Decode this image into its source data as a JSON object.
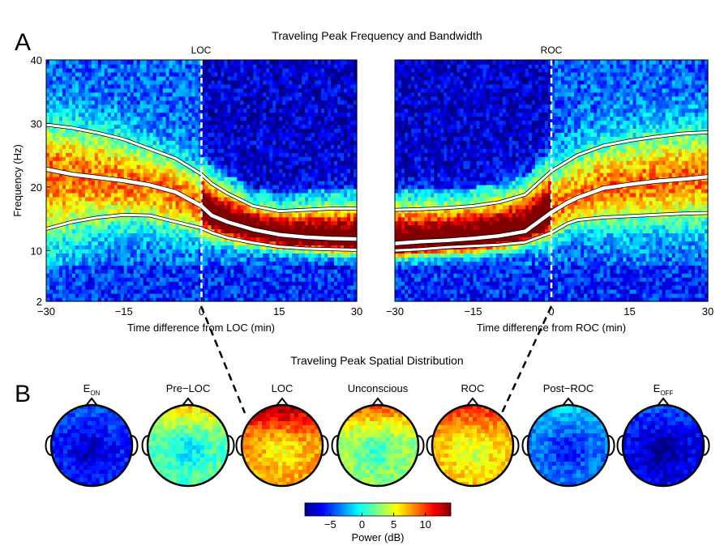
{
  "panel_labels": {
    "a": "A",
    "b": "B"
  },
  "panel_a_title": "Traveling Peak Frequency and Bandwidth",
  "panel_b_title": "Traveling Peak Spatial Distribution",
  "chart_data": [
    {
      "type": "heatmap",
      "title": "LOC",
      "xlabel": "Time difference from LOC (min)",
      "ylabel": "Frequency (Hz)",
      "xlim": [
        -30,
        30
      ],
      "ylim": [
        2,
        40
      ],
      "x_ticks": [
        "−30",
        "−15",
        "0",
        "15",
        "30"
      ],
      "x_tick_values": [
        -30,
        -15,
        0,
        15,
        30
      ],
      "y_ticks": [
        "2",
        "10",
        "20",
        "30",
        "40"
      ],
      "y_tick_values": [
        2,
        10,
        20,
        30,
        40
      ],
      "event_line_x": 0,
      "series": [
        {
          "x": [
            -30,
            -25,
            -20,
            -15,
            -10,
            -5,
            0,
            2,
            5,
            10,
            15,
            20,
            25,
            30
          ],
          "y": [
            29.8,
            29.3,
            28.5,
            27.5,
            26,
            24.5,
            22,
            20.5,
            19,
            17,
            16.2,
            16.4,
            16.6,
            16.6
          ]
        },
        {
          "x": [
            -30,
            -25,
            -20,
            -15,
            -10,
            -5,
            0,
            2,
            5,
            10,
            15,
            20,
            25,
            30
          ],
          "y": [
            22.8,
            22,
            21.5,
            21,
            20.3,
            19.2,
            17,
            15.5,
            14.5,
            13.3,
            12.5,
            12.1,
            11.9,
            11.8
          ]
        },
        {
          "x": [
            -30,
            -25,
            -20,
            -15,
            -10,
            -5,
            0,
            2,
            5,
            10,
            15,
            20,
            25,
            30
          ],
          "y": [
            13.4,
            14.5,
            15.2,
            15.6,
            15.5,
            14.5,
            13.5,
            12.8,
            12,
            11.2,
            10.6,
            10.3,
            10.2,
            10.1
          ]
        }
      ]
    },
    {
      "type": "heatmap",
      "title": "ROC",
      "xlabel": "Time difference from ROC (min)",
      "ylabel": "",
      "xlim": [
        -30,
        30
      ],
      "ylim": [
        2,
        40
      ],
      "x_ticks": [
        "−30",
        "−15",
        "0",
        "15",
        "30"
      ],
      "x_tick_values": [
        -30,
        -15,
        0,
        15,
        30
      ],
      "y_ticks": [],
      "event_line_x": 0,
      "series": [
        {
          "x": [
            -30,
            -25,
            -20,
            -15,
            -10,
            -5,
            0,
            3,
            5,
            10,
            15,
            20,
            25,
            30
          ],
          "y": [
            16.4,
            16.5,
            16.7,
            17,
            17.6,
            18.8,
            22.5,
            24,
            25,
            26.5,
            27.3,
            27.9,
            28.4,
            28.6
          ]
        },
        {
          "x": [
            -30,
            -25,
            -20,
            -15,
            -10,
            -5,
            0,
            3,
            5,
            10,
            15,
            20,
            25,
            30
          ],
          "y": [
            11.1,
            11.4,
            11.6,
            11.9,
            12.3,
            13,
            16,
            17.5,
            18.3,
            19.8,
            20.4,
            20.9,
            21.2,
            21.6
          ]
        },
        {
          "x": [
            -30,
            -25,
            -20,
            -15,
            -10,
            -5,
            0,
            3,
            5,
            10,
            15,
            20,
            25,
            30
          ],
          "y": [
            10,
            10.2,
            10.5,
            10.7,
            10.9,
            11.3,
            12.8,
            14.2,
            14.8,
            15.2,
            15.4,
            15.6,
            15.8,
            15.9
          ]
        }
      ]
    },
    {
      "type": "heatmap",
      "subtype": "scalp-topography",
      "panels": [
        {
          "label_main": "E",
          "label_sub": "ON",
          "level": -5.5,
          "frontal": -4
        },
        {
          "label_main": "Pre−LOC",
          "label_sub": "",
          "level": 1.5,
          "frontal": 7
        },
        {
          "label_main": "LOC",
          "label_sub": "",
          "level": 7.5,
          "frontal": 14
        },
        {
          "label_main": "Unconscious",
          "label_sub": "",
          "level": 3,
          "frontal": 10
        },
        {
          "label_main": "ROC",
          "label_sub": "",
          "level": 6.5,
          "frontal": 11
        },
        {
          "label_main": "Post−ROC",
          "label_sub": "",
          "level": -3.5,
          "frontal": -1
        },
        {
          "label_main": "E",
          "label_sub": "OFF",
          "level": -6.5,
          "frontal": -4
        }
      ],
      "colorbar": {
        "label": "Power (dB)",
        "ticks": [
          "−5",
          "0",
          "5",
          "10"
        ],
        "tick_values": [
          -5,
          0,
          5,
          10
        ],
        "range": [
          -9,
          14
        ]
      }
    }
  ]
}
